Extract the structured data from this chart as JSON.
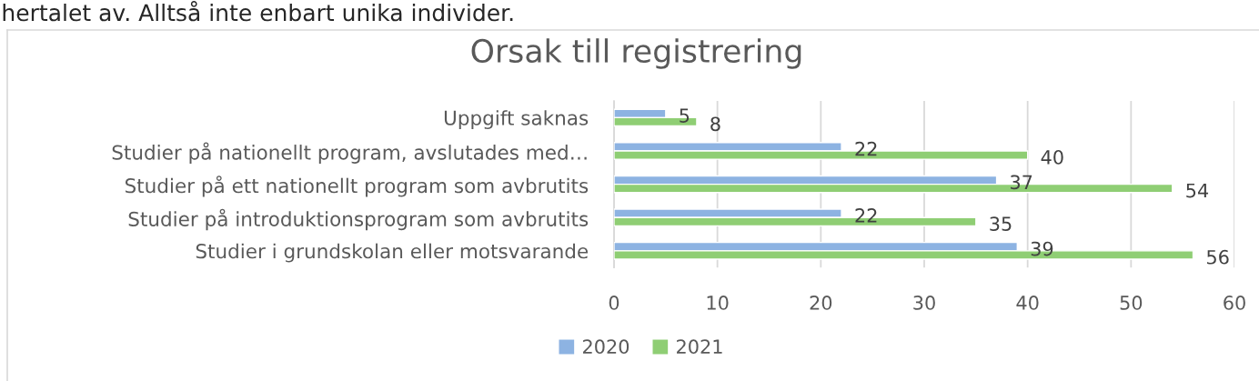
{
  "chart_data": {
    "type": "bar",
    "orientation": "horizontal",
    "title": "Orsak till registrering",
    "annotations": [
      "hertalet av. Alltså inte enbart unika individer."
    ],
    "categories": [
      "Uppgift saknas",
      "Studier på nationellt program, avslutades med…",
      "Studier på ett nationellt program som avbrutits",
      "Studier på introduktionsprogram som avbrutits",
      "Studier i grundskolan eller motsvarande"
    ],
    "series": [
      {
        "name": "2020",
        "color": "#8db3e2",
        "values": [
          5,
          22,
          37,
          22,
          39
        ]
      },
      {
        "name": "2021",
        "color": "#8fce74",
        "values": [
          8,
          40,
          54,
          35,
          56
        ]
      }
    ],
    "xlim": [
      0,
      60
    ],
    "xticks": [
      0,
      10,
      20,
      30,
      40,
      50,
      60
    ],
    "grid": "x",
    "legend": "bottom",
    "data_labels": true
  }
}
